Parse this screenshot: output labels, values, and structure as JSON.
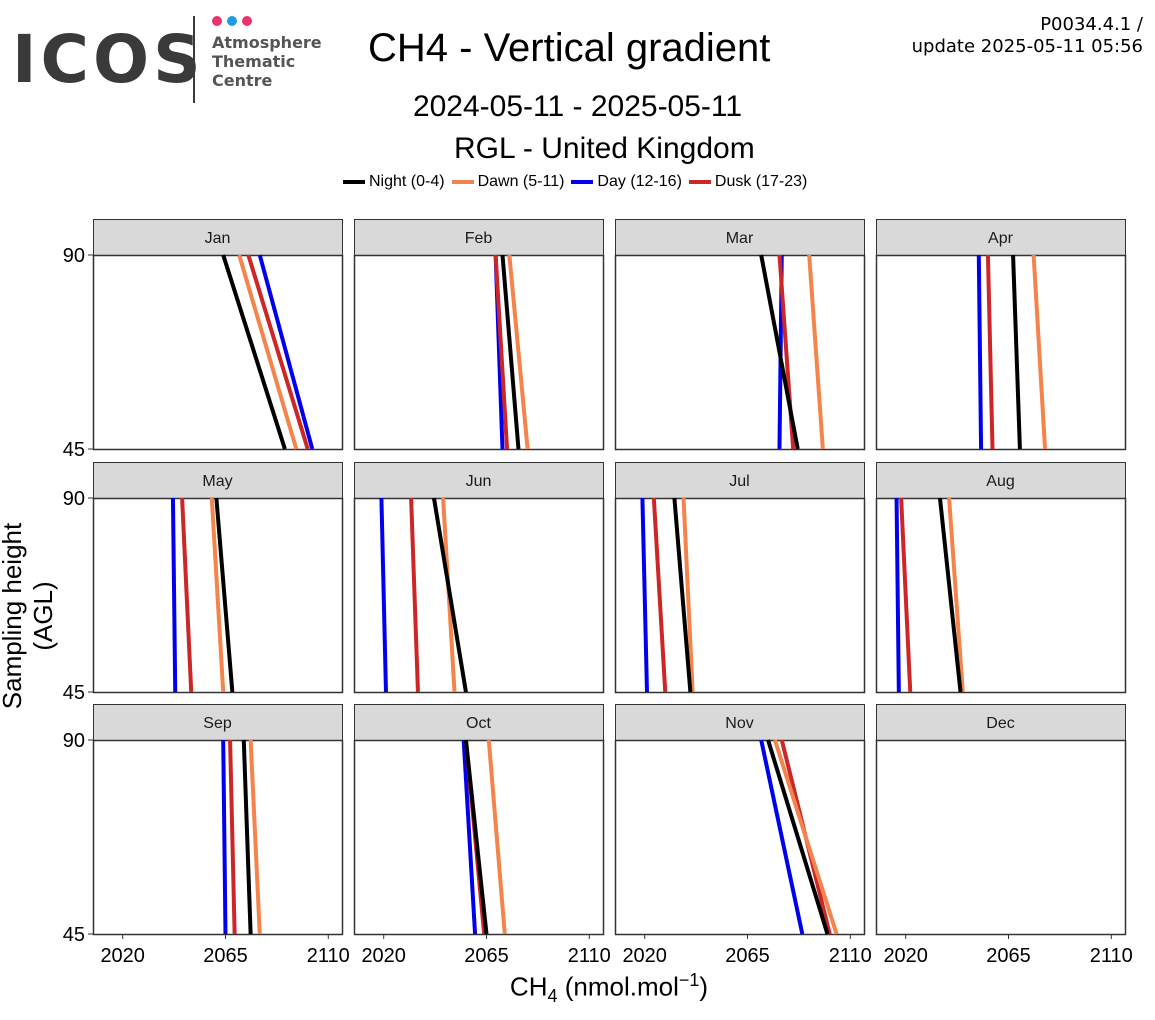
{
  "logo": {
    "text": "ICOS",
    "subtitle_lines": [
      "Atmosphere",
      "Thematic",
      "Centre"
    ],
    "dot_colors": [
      "#e8336e",
      "#1e9be8",
      "#e8336e"
    ]
  },
  "header": {
    "version_line": "P0034.4.1 /",
    "update_line": "update  2025-05-11 05:56"
  },
  "chart_data": {
    "type": "line",
    "title": "CH4 - Vertical gradient",
    "date_range": "2024-05-11 - 2025-05-11",
    "station": "RGL - United Kingdom",
    "ylabel": "Sampling height (AGL)",
    "xlabel": "CH4 (nmol.mol-1)",
    "xlabel_base": "CH",
    "xlabel_sub": "4",
    "xlabel_unit": " (nmol.mol",
    "xlabel_sup": "−1",
    "xlabel_close": ")",
    "xlim": [
      2007,
      2116
    ],
    "ylim": [
      45,
      90
    ],
    "x_ticks": [
      2020,
      2065,
      2110
    ],
    "y_ticks": [
      45,
      90
    ],
    "legend_position": "top",
    "series": [
      {
        "name": "Night (0-4)",
        "color": "#000000"
      },
      {
        "name": "Dawn (5-11)",
        "color": "#f4844c"
      },
      {
        "name": "Day (12-16)",
        "color": "#0000ee"
      },
      {
        "name": "Dusk (17-23)",
        "color": "#cd2626"
      }
    ],
    "panels": [
      {
        "month": "Jan",
        "lines": {
          "Night (0-4)": [
            [
              2064,
              90
            ],
            [
              2091,
              45
            ]
          ],
          "Dawn (5-11)": [
            [
              2071,
              90
            ],
            [
              2096,
              45
            ]
          ],
          "Day (12-16)": [
            [
              2080,
              90
            ],
            [
              2103,
              45
            ]
          ],
          "Dusk (17-23)": [
            [
              2075,
              90
            ],
            [
              2101,
              45
            ]
          ]
        }
      },
      {
        "month": "Feb",
        "lines": {
          "Night (0-4)": [
            [
              2072,
              90
            ],
            [
              2079,
              45
            ]
          ],
          "Dawn (5-11)": [
            [
              2075,
              90
            ],
            [
              2083,
              45
            ]
          ],
          "Day (12-16)": [
            [
              2069,
              90
            ],
            [
              2072,
              45
            ]
          ],
          "Dusk (17-23)": [
            [
              2069,
              90
            ],
            [
              2074,
              45
            ]
          ]
        }
      },
      {
        "month": "Mar",
        "lines": {
          "Night (0-4)": [
            [
              2071,
              90
            ],
            [
              2087,
              45
            ]
          ],
          "Dawn (5-11)": [
            [
              2092,
              90
            ],
            [
              2098,
              45
            ]
          ],
          "Day (12-16)": [
            [
              2080,
              90
            ],
            [
              2079,
              45
            ]
          ],
          "Dusk (17-23)": [
            [
              2079,
              90
            ],
            [
              2085,
              45
            ]
          ]
        }
      },
      {
        "month": "Apr",
        "lines": {
          "Night (0-4)": [
            [
              2067,
              90
            ],
            [
              2070,
              45
            ]
          ],
          "Dawn (5-11)": [
            [
              2076,
              90
            ],
            [
              2081,
              45
            ]
          ],
          "Day (12-16)": [
            [
              2052,
              90
            ],
            [
              2053,
              45
            ]
          ],
          "Dusk (17-23)": [
            [
              2056,
              90
            ],
            [
              2058,
              45
            ]
          ]
        }
      },
      {
        "month": "May",
        "lines": {
          "Night (0-4)": [
            [
              2061,
              90
            ],
            [
              2068,
              45
            ]
          ],
          "Dawn (5-11)": [
            [
              2059,
              90
            ],
            [
              2064,
              45
            ]
          ],
          "Day (12-16)": [
            [
              2042,
              90
            ],
            [
              2043,
              45
            ]
          ],
          "Dusk (17-23)": [
            [
              2046,
              90
            ],
            [
              2050,
              45
            ]
          ]
        }
      },
      {
        "month": "Jun",
        "lines": {
          "Night (0-4)": [
            [
              2042,
              90
            ],
            [
              2056,
              45
            ]
          ],
          "Dawn (5-11)": [
            [
              2046,
              90
            ],
            [
              2051,
              45
            ]
          ],
          "Day (12-16)": [
            [
              2019,
              90
            ],
            [
              2021,
              45
            ]
          ],
          "Dusk (17-23)": [
            [
              2032,
              90
            ],
            [
              2035,
              45
            ]
          ]
        }
      },
      {
        "month": "Jul",
        "lines": {
          "Night (0-4)": [
            [
              2033,
              90
            ],
            [
              2040,
              45
            ]
          ],
          "Dawn (5-11)": [
            [
              2037,
              90
            ],
            [
              2041,
              45
            ]
          ],
          "Day (12-16)": [
            [
              2019,
              90
            ],
            [
              2021,
              45
            ]
          ],
          "Dusk (17-23)": [
            [
              2024,
              90
            ],
            [
              2029,
              45
            ]
          ]
        }
      },
      {
        "month": "Aug",
        "lines": {
          "Night (0-4)": [
            [
              2035,
              90
            ],
            [
              2044,
              45
            ]
          ],
          "Dawn (5-11)": [
            [
              2039,
              90
            ],
            [
              2045,
              45
            ]
          ],
          "Day (12-16)": [
            [
              2016,
              90
            ],
            [
              2017,
              45
            ]
          ],
          "Dusk (17-23)": [
            [
              2018,
              90
            ],
            [
              2022,
              45
            ]
          ]
        }
      },
      {
        "month": "Sep",
        "lines": {
          "Night (0-4)": [
            [
              2073,
              90
            ],
            [
              2076,
              45
            ]
          ],
          "Dawn (5-11)": [
            [
              2076,
              90
            ],
            [
              2080,
              45
            ]
          ],
          "Day (12-16)": [
            [
              2064,
              90
            ],
            [
              2065,
              45
            ]
          ],
          "Dusk (17-23)": [
            [
              2067,
              90
            ],
            [
              2069,
              45
            ]
          ]
        }
      },
      {
        "month": "Oct",
        "lines": {
          "Night (0-4)": [
            [
              2056,
              90
            ],
            [
              2065,
              45
            ]
          ],
          "Dawn (5-11)": [
            [
              2066,
              90
            ],
            [
              2073,
              45
            ]
          ],
          "Day (12-16)": [
            [
              2055,
              90
            ],
            [
              2060,
              45
            ]
          ],
          "Dusk (17-23)": [
            [
              2056,
              90
            ],
            [
              2064,
              45
            ]
          ]
        }
      },
      {
        "month": "Nov",
        "lines": {
          "Night (0-4)": [
            [
              2074,
              90
            ],
            [
              2100,
              45
            ]
          ],
          "Dawn (5-11)": [
            [
              2077,
              90
            ],
            [
              2104,
              45
            ]
          ],
          "Day (12-16)": [
            [
              2071,
              90
            ],
            [
              2089,
              45
            ]
          ],
          "Dusk (17-23)": [
            [
              2080,
              90
            ],
            [
              2101,
              45
            ]
          ]
        }
      },
      {
        "month": "Dec",
        "lines": {}
      }
    ]
  }
}
